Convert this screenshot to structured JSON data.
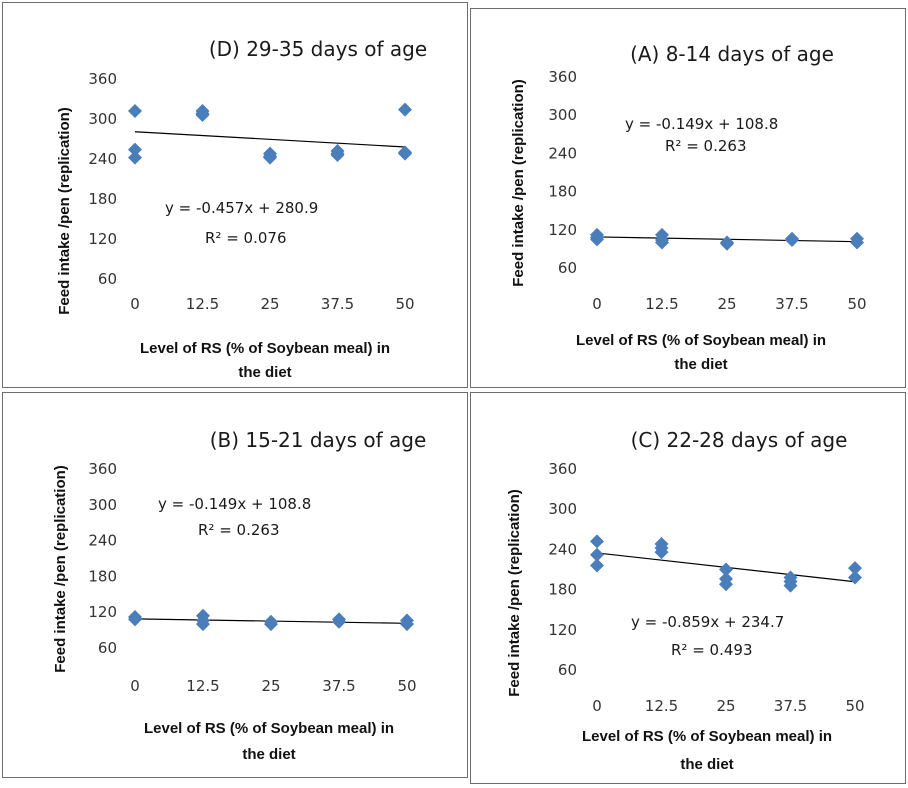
{
  "colors": {
    "marker": "#4a7ebb",
    "trendline": "#000000"
  },
  "shared": {
    "xlabel_line1": "Level of RS (% of Soybean meal) in",
    "xlabel_line2": "the diet",
    "ylabel": "Feed intake /pen (replication)"
  },
  "chart_data": [
    {
      "type": "scatter",
      "title": "(D) 29-35 days of age",
      "xlabel": "Level of RS (% of Soybean meal) in the diet",
      "ylabel": "Feed intake /pen (replication)",
      "x_ticks": [
        "0",
        "12.5",
        "25",
        "37.5",
        "50"
      ],
      "y_ticks": [
        "60",
        "120",
        "180",
        "240",
        "300",
        "360"
      ],
      "xlim": [
        0,
        50
      ],
      "ylim": [
        60,
        360
      ],
      "grid": false,
      "points": [
        [
          0,
          312
        ],
        [
          0,
          254
        ],
        [
          0,
          242
        ],
        [
          12.5,
          312
        ],
        [
          12.5,
          308
        ],
        [
          12.5,
          306
        ],
        [
          25,
          248
        ],
        [
          25,
          244
        ],
        [
          25,
          242
        ],
        [
          37.5,
          252
        ],
        [
          37.5,
          248
        ],
        [
          37.5,
          246
        ],
        [
          50,
          314
        ],
        [
          50,
          250
        ],
        [
          50,
          248
        ]
      ],
      "trendline": {
        "slope": -0.457,
        "intercept": 280.9
      },
      "equation": "y = -0.457x + 280.9",
      "r2": "R² = 0.076"
    },
    {
      "type": "scatter",
      "title": "(A) 8-14 days of age",
      "xlabel": "Level of RS (% of Soybean meal) in the diet",
      "ylabel": "Feed intake /pen (replication)",
      "x_ticks": [
        "0",
        "12.5",
        "25",
        "37.5",
        "50"
      ],
      "y_ticks": [
        "60",
        "120",
        "180",
        "240",
        "300",
        "360"
      ],
      "xlim": [
        0,
        50
      ],
      "ylim": [
        60,
        360
      ],
      "grid": false,
      "points": [
        [
          0,
          112
        ],
        [
          0,
          108
        ],
        [
          0,
          105
        ],
        [
          12.5,
          112
        ],
        [
          12.5,
          104
        ],
        [
          12.5,
          100
        ],
        [
          25,
          100
        ],
        [
          25,
          98
        ],
        [
          37.5,
          106
        ],
        [
          37.5,
          104
        ],
        [
          50,
          106
        ],
        [
          50,
          100
        ]
      ],
      "trendline": {
        "slope": -0.149,
        "intercept": 108.8
      },
      "equation": "y = -0.149x + 108.8",
      "r2": "R² = 0.263"
    },
    {
      "type": "scatter",
      "title": "(B) 15-21 days of age",
      "xlabel": "Level of RS (% of Soybean meal) in the diet",
      "ylabel": "Feed intake /pen (replication)",
      "x_ticks": [
        "0",
        "12.5",
        "25",
        "37.5",
        "50"
      ],
      "y_ticks": [
        "60",
        "120",
        "180",
        "240",
        "300",
        "360"
      ],
      "xlim": [
        0,
        50
      ],
      "ylim": [
        60,
        360
      ],
      "grid": false,
      "points": [
        [
          0,
          112
        ],
        [
          0,
          108
        ],
        [
          12.5,
          114
        ],
        [
          12.5,
          106
        ],
        [
          12.5,
          100
        ],
        [
          25,
          104
        ],
        [
          25,
          100
        ],
        [
          37.5,
          108
        ],
        [
          37.5,
          104
        ],
        [
          50,
          106
        ],
        [
          50,
          100
        ]
      ],
      "trendline": {
        "slope": -0.149,
        "intercept": 108.8
      },
      "equation": "y = -0.149x + 108.8",
      "r2": "R² = 0.263"
    },
    {
      "type": "scatter",
      "title": "(C) 22-28 days of age",
      "xlabel": "Level of RS (% of Soybean meal) in the diet",
      "ylabel": "Feed intake /pen (replication)",
      "x_ticks": [
        "0",
        "12.5",
        "25",
        "37.5",
        "50"
      ],
      "y_ticks": [
        "60",
        "120",
        "180",
        "240",
        "300",
        "360"
      ],
      "xlim": [
        0,
        50
      ],
      "ylim": [
        60,
        360
      ],
      "grid": false,
      "points": [
        [
          0,
          252
        ],
        [
          0,
          232
        ],
        [
          0,
          216
        ],
        [
          12.5,
          248
        ],
        [
          12.5,
          242
        ],
        [
          12.5,
          236
        ],
        [
          25,
          210
        ],
        [
          25,
          196
        ],
        [
          25,
          188
        ],
        [
          37.5,
          198
        ],
        [
          37.5,
          192
        ],
        [
          37.5,
          186
        ],
        [
          50,
          212
        ],
        [
          50,
          198
        ]
      ],
      "trendline": {
        "slope": -0.859,
        "intercept": 234.7
      },
      "equation": "y = -0.859x + 234.7",
      "r2": "R² = 0.493"
    }
  ]
}
